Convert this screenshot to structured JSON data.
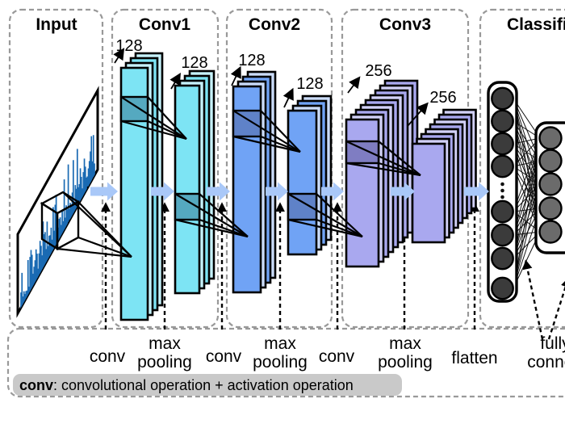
{
  "sections": {
    "input": {
      "title": "Input"
    },
    "conv1": {
      "title": "Conv1",
      "stack1_filters": "128",
      "stack2_filters": "128"
    },
    "conv2": {
      "title": "Conv2",
      "stack1_filters": "128",
      "stack2_filters": "128"
    },
    "conv3": {
      "title": "Conv3",
      "stack1_filters": "256",
      "stack2_filters": "256"
    },
    "classification": {
      "title": "Classification",
      "left_neuron_count": 8,
      "right_neuron_count": 5,
      "has_ellipsis": true
    }
  },
  "operations": {
    "conv": "conv",
    "max": "max",
    "pooling": "pooling",
    "flatten": "flatten",
    "fully": "fully",
    "connect": "connect"
  },
  "legend": {
    "term": "conv",
    "description": ": convolutional operation + activation operation"
  },
  "colors": {
    "conv1_layer": "#7de4f4",
    "conv1_layer_alt": "#c6f2fb",
    "conv1_kernel": "#55a9c0",
    "conv2_layer": "#70a3f5",
    "conv2_layer_alt": "#cbdcf9",
    "conv2_kernel": "#5f82c8",
    "conv3_layer": "#a9a8ef",
    "conv3_layer_alt": "#d2d1f7",
    "conv3_kernel": "#7f7dc2",
    "flow_arrow": "#a9c8f8",
    "waveform": "#1a6ab3",
    "neuron_left": "#3b3b3b",
    "neuron_right": "#6b6b6b",
    "legend_bg": "#c9c9c9",
    "border_dash": "#999999"
  }
}
